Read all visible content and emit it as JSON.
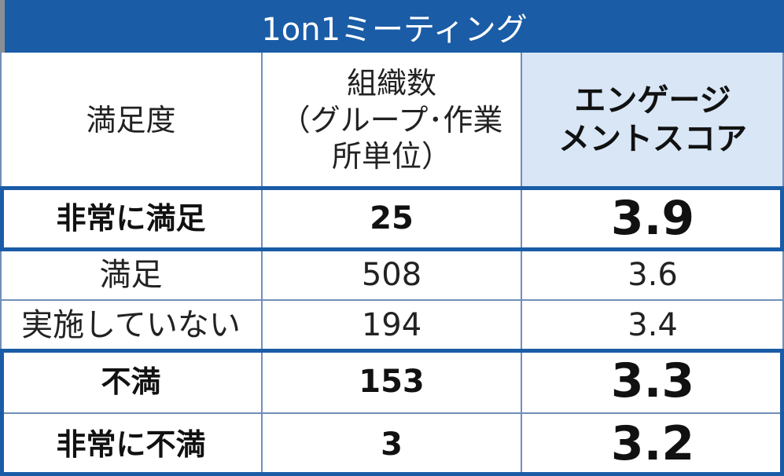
{
  "title": "1on1ミーティング",
  "header": {
    "col1": "満足度",
    "col2_line1": "組織数",
    "col2_line2": "（グループ･作業",
    "col2_line3": "所単位）",
    "col3_line1": "エンゲージ",
    "col3_line2": "メントスコア"
  },
  "rows": [
    {
      "label": "非常に満足",
      "count": "25",
      "score": "3.9"
    },
    {
      "label": "満足",
      "count": "508",
      "score": "3.6"
    },
    {
      "label": "実施していない",
      "count": "194",
      "score": "3.4"
    },
    {
      "label": "不満",
      "count": "153",
      "score": "3.3"
    },
    {
      "label": "非常に不満",
      "count": "3",
      "score": "3.2"
    }
  ],
  "colors": {
    "title_bar": "#1a5ca6",
    "highlight_header": "#d8e6f6",
    "highlight_border": "#1a5ca6"
  }
}
